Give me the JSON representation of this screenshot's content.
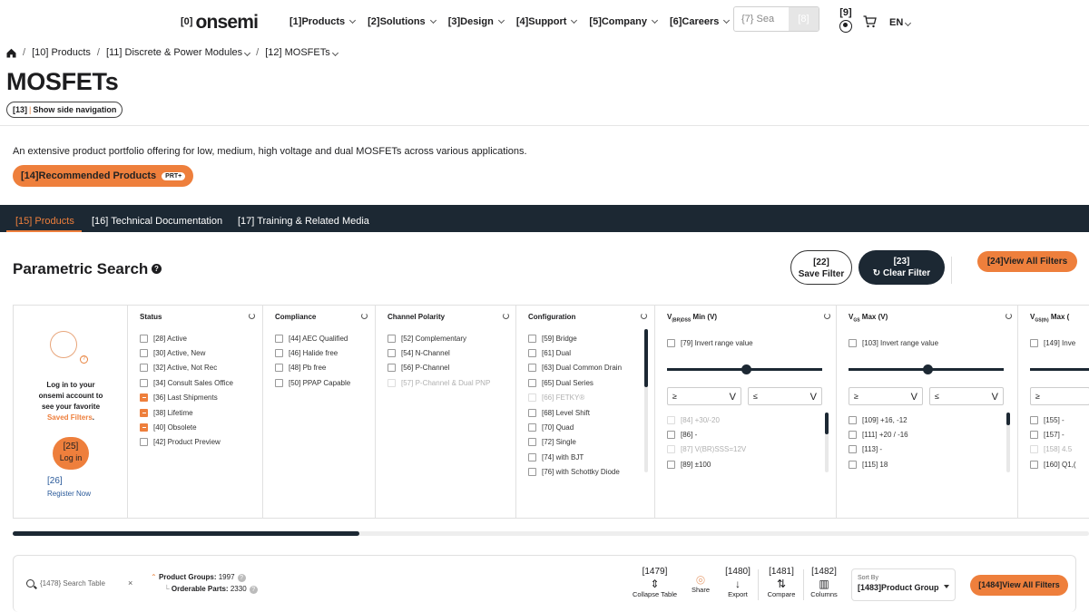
{
  "header": {
    "logo_index": "[0]",
    "logo_text": "onsemi",
    "nav": [
      "[1]Products",
      "[2]Solutions",
      "[3]Design",
      "[4]Support",
      "[5]Company",
      "[6]Careers"
    ],
    "search_placeholder": "{7} Sea",
    "search_button": "[8]",
    "account_index": "[9]",
    "language": "EN"
  },
  "breadcrumb": [
    "[10] Products",
    "[11] Discrete & Power Modules",
    "[12] MOSFETs"
  ],
  "page_title": "MOSFETs",
  "side_nav_index": "[13]",
  "side_nav_label": "Show side navigation",
  "intro_text": "An extensive product portfolio offering for low, medium, high voltage and dual MOSFETs across various applications.",
  "recommended_label": "[14]Recommended Products",
  "recommended_badge": "PRT+",
  "tabs": [
    "[15] Products",
    "[16] Technical Documentation",
    "[17] Training & Related Media"
  ],
  "parametric": {
    "title": "Parametric Search",
    "help": "?",
    "save_index": "[22]",
    "save_label": "Save Filter",
    "clear_index": "[23]",
    "clear_label": "Clear Filter",
    "view_all": "[24]View All Filters"
  },
  "login": {
    "line1": "Log in to your",
    "line2": "onsemi account to",
    "line3": "see your favorite",
    "saved": "Saved Filters",
    "button_index": "[25]",
    "button_label": "Log in",
    "register_index": "[26]",
    "register_label": "Register Now"
  },
  "filters": {
    "status": {
      "title": "Status",
      "options": [
        "[28] Active",
        "[30] Active, New",
        "[32] Active, Not Rec",
        "[34] Consult Sales Office",
        "[36] Last Shipments",
        "[38] Lifetime",
        "[40] Obsolete",
        "[42] Product Preview"
      ],
      "checked": [
        false,
        false,
        false,
        false,
        true,
        true,
        true,
        false
      ]
    },
    "compliance": {
      "title": "Compliance",
      "options": [
        "[44] AEC Qualified",
        "[46] Halide free",
        "[48] Pb free",
        "[50] PPAP Capable"
      ]
    },
    "polarity": {
      "title": "Channel Polarity",
      "options": [
        "[52] Complementary",
        "[54] N-Channel",
        "[56] P-Channel",
        "[57] P-Channel & Dual PNP"
      ]
    },
    "configuration": {
      "title": "Configuration",
      "options": [
        "[59] Bridge",
        "[61] Dual",
        "[63] Dual Common Drain",
        "[65] Dual Series",
        "[66] FETKY®",
        "[68] Level Shift",
        "[70] Quad",
        "[72] Single",
        "[74] with BJT",
        "[76] with Schottky Diode"
      ]
    },
    "vbrdss": {
      "title_main": "V",
      "title_sub": "(BR)DSS",
      "title_rest": " Min (V)",
      "invert": "[79] Invert range value",
      "ge": "≥",
      "le": "≤",
      "unit": "V",
      "options": [
        "[84] +30/-20",
        "[86] -",
        "[87] V(BR)SSS=12V",
        "[89] ±100"
      ]
    },
    "vgs": {
      "title_main": "V",
      "title_sub": "GS",
      "title_rest": " Max (V)",
      "invert": "[103] Invert range value",
      "ge": "≥",
      "le": "≤",
      "unit": "V",
      "options": [
        "[109] +16, -12",
        "[111] +20 / -16",
        "[113] -",
        "[115] 18"
      ]
    },
    "vgsth": {
      "title_main": "V",
      "title_sub": "GS(th)",
      "title_rest": " Max (",
      "invert": "[149] Inve",
      "ge": "≥",
      "options": [
        "[155] -",
        "[157] -",
        "[158] 4.5",
        "[160] Q1,("
      ]
    }
  },
  "table": {
    "search_placeholder": "{1478} Search Table",
    "clear": "×",
    "product_groups_label": "Product Groups:",
    "product_groups_value": "1997",
    "orderable_label": "Orderable Parts:",
    "orderable_value": "2330",
    "collapse_index": "[1479]",
    "collapse_label": "Collapse Table",
    "share_label": "Share",
    "export_index": "[1480]",
    "export_label": "Export",
    "compare_index": "[1481]",
    "compare_label": "Compare",
    "columns_index": "[1482]",
    "columns_label": "Columns",
    "sort_by": "Sort By",
    "sort_value": "[1483]Product Group",
    "view_all": "[1484]View All Filters"
  },
  "colors": {
    "accent": "#ee7f3c",
    "dark": "#1c2833"
  }
}
